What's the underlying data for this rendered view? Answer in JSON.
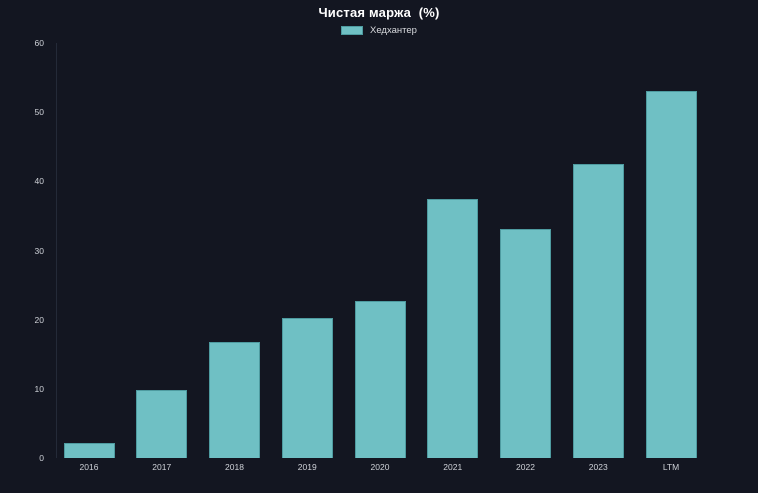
{
  "chart_data": {
    "type": "bar",
    "title": "Чистая маржа  (%)",
    "categories": [
      "2016",
      "2017",
      "2018",
      "2019",
      "2020",
      "2021",
      "2022",
      "2023",
      "LTM"
    ],
    "series": [
      {
        "name": "Хедхантер",
        "values": [
          2.2,
          9.8,
          16.8,
          20.2,
          22.7,
          37.4,
          33.1,
          42.5,
          53.0
        ]
      }
    ],
    "xlabel": "",
    "ylabel": "",
    "ylim": [
      0,
      60
    ],
    "yticks": [
      0,
      10,
      20,
      30,
      40,
      50,
      60
    ],
    "grid": false,
    "legend_position": "top-center",
    "colors": {
      "background": "#131621",
      "bar_fill": "#6fc0c4",
      "bar_border": "#4e9ba0",
      "title_text": "#ffffff",
      "axis_text": "#cfd2d8",
      "axis_line": "#242a38"
    }
  }
}
